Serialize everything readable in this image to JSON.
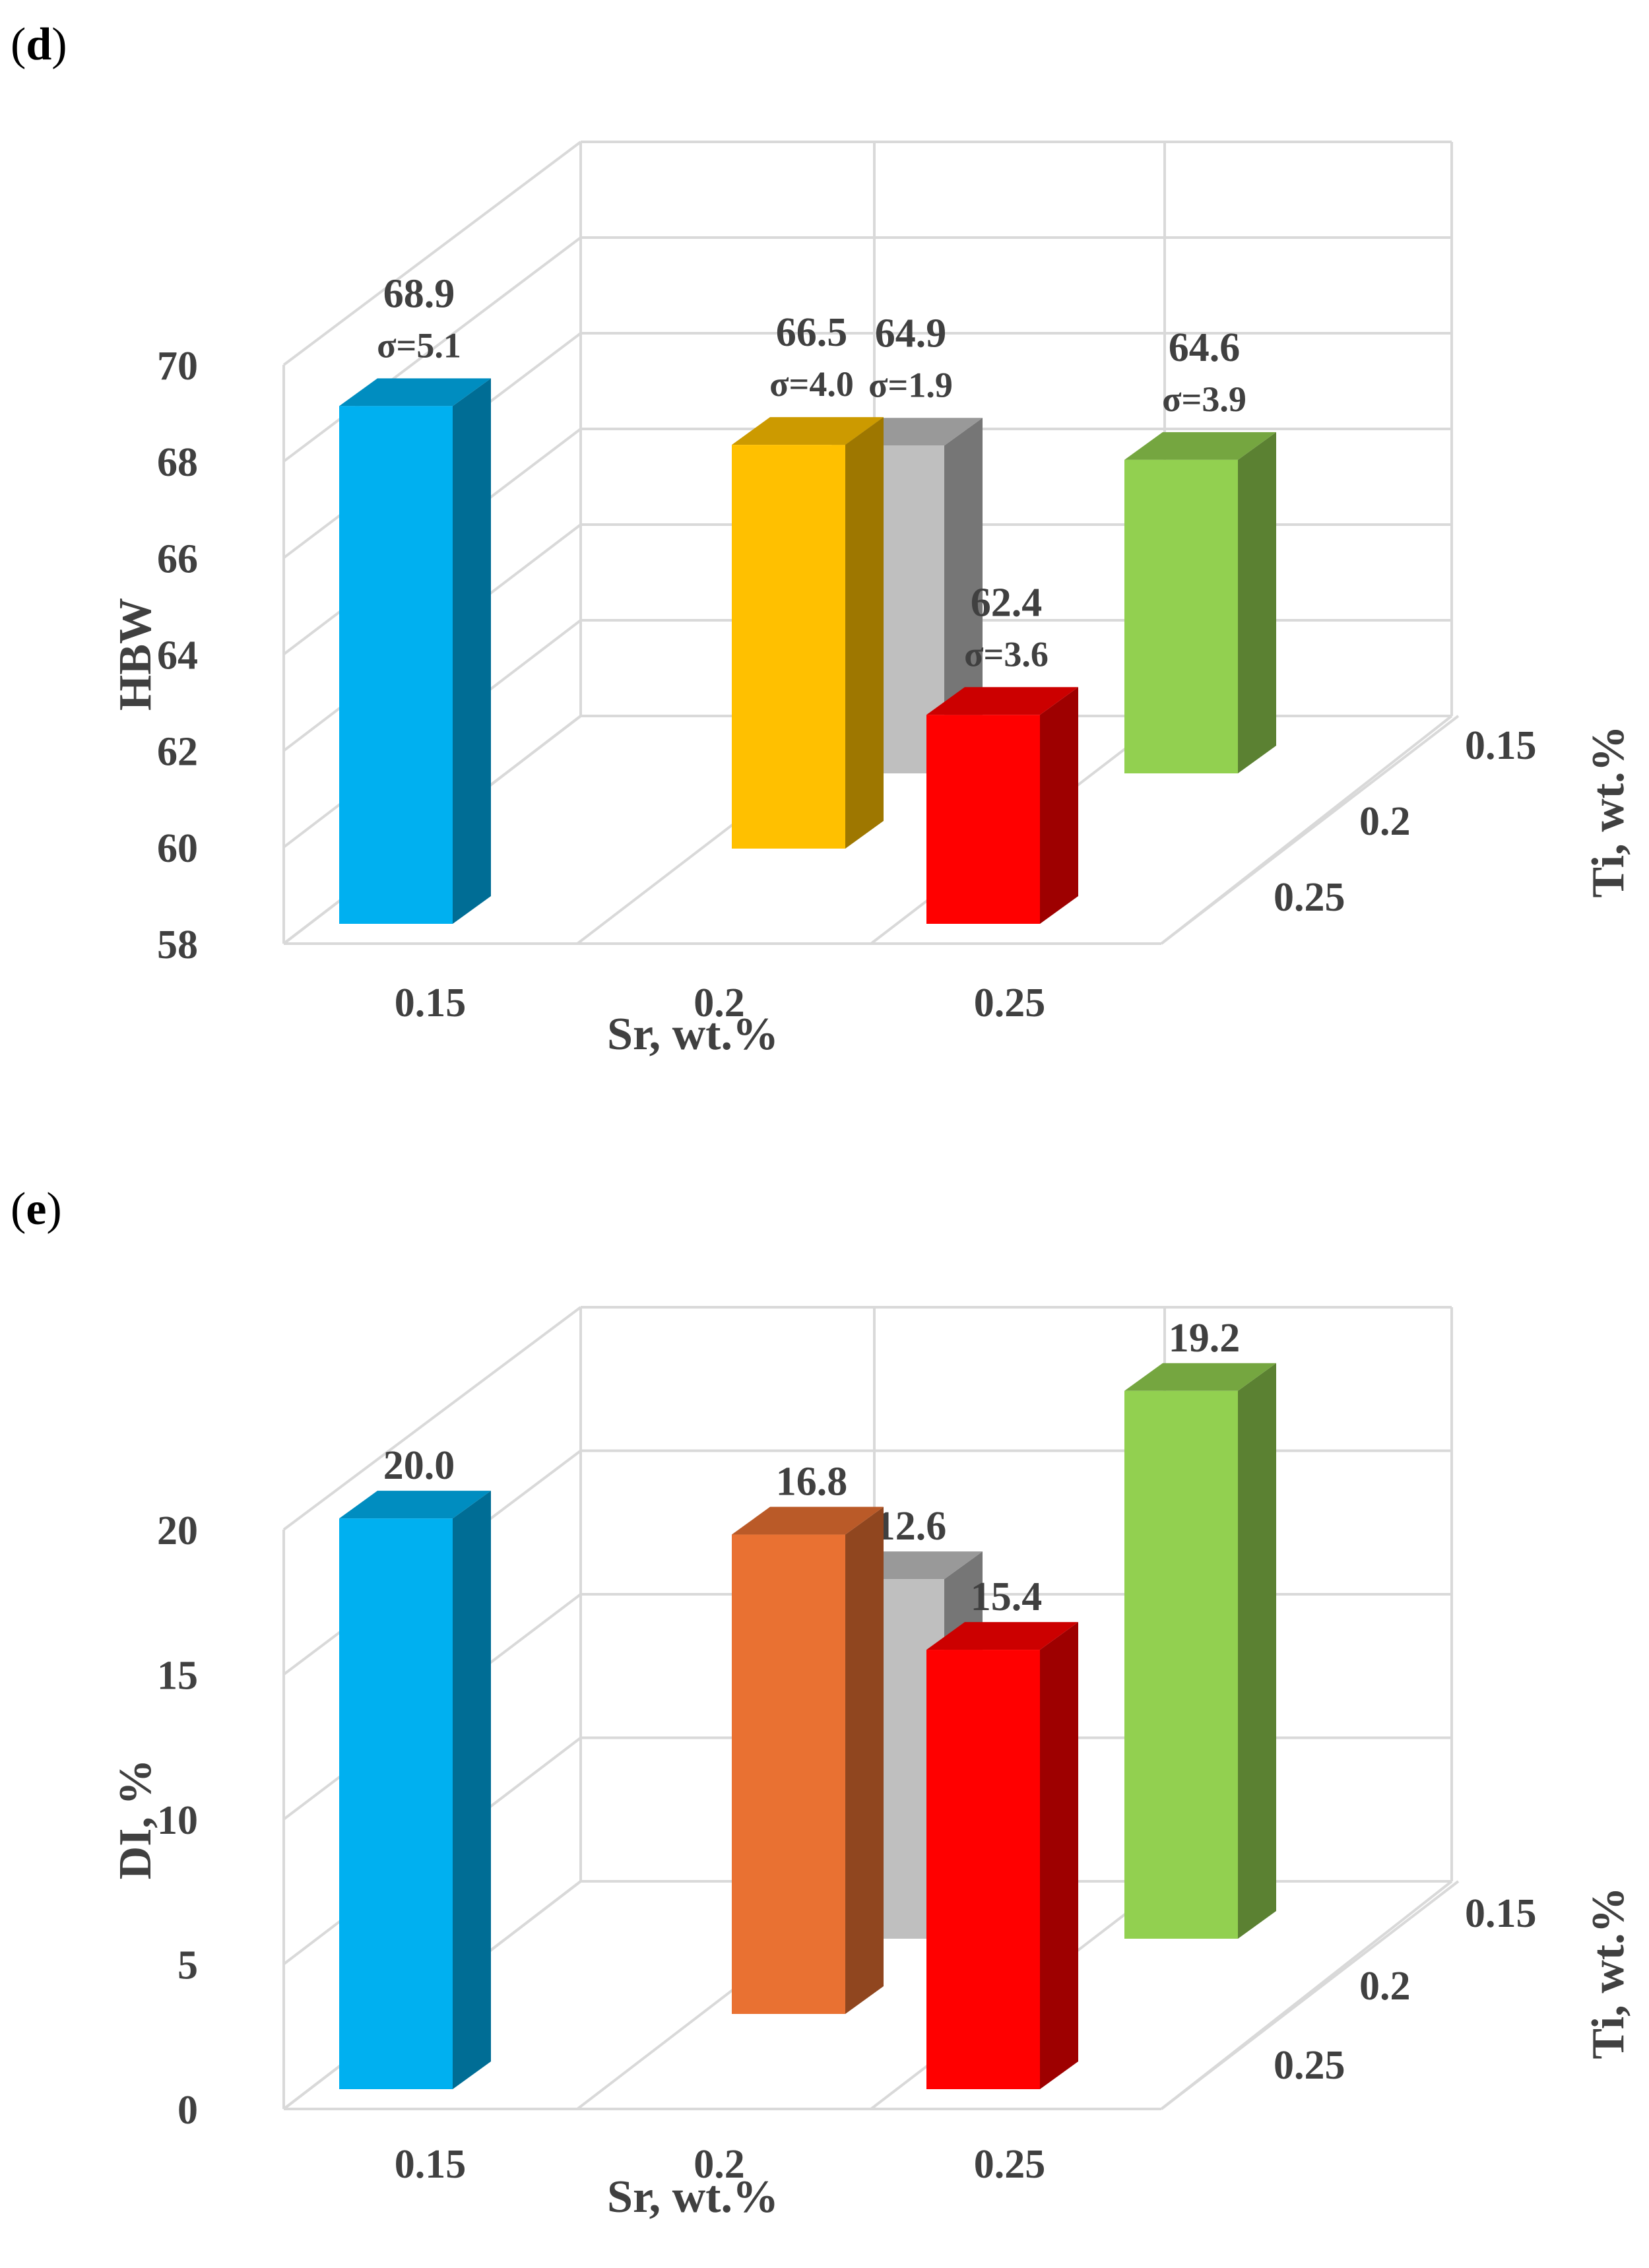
{
  "chart_data": [
    {
      "type": "bar",
      "view": "3d",
      "panel": "d",
      "xlabel": "Sr, wt.%",
      "ylabel": "HBW",
      "zlabel": "Ti, wt.%",
      "x_categories": [
        "0.15",
        "0.2",
        "0.25"
      ],
      "z_categories": [
        "0.15",
        "0.2",
        "0.25"
      ],
      "ylim": [
        58,
        70
      ],
      "yticks": [
        "58",
        "60",
        "62",
        "64",
        "66",
        "68",
        "70"
      ],
      "bars": [
        {
          "sr": "0.15",
          "ti": "0.25",
          "value": 68.9,
          "label": "68.9",
          "sigma": "σ=5.1",
          "color": "#00b0f0"
        },
        {
          "sr": "0.2",
          "ti": "0.15",
          "value": 64.9,
          "label": "64.9",
          "sigma": "σ=1.9",
          "color": "#bfbfbf"
        },
        {
          "sr": "0.2",
          "ti": "0.2",
          "value": 66.5,
          "label": "66.5",
          "sigma": "σ=4.0",
          "color": "#ffc000"
        },
        {
          "sr": "0.25",
          "ti": "0.25",
          "value": 62.4,
          "label": "62.4",
          "sigma": "σ=3.6",
          "color": "#ff0000"
        },
        {
          "sr": "0.25",
          "ti": "0.15",
          "value": 64.6,
          "label": "64.6",
          "sigma": "σ=3.9",
          "color": "#92d050"
        }
      ]
    },
    {
      "type": "bar",
      "view": "3d",
      "panel": "e",
      "xlabel": "Sr, wt.%",
      "ylabel": "DI, %",
      "zlabel": "Ti, wt.%",
      "x_categories": [
        "0.15",
        "0.2",
        "0.25"
      ],
      "z_categories": [
        "0.15",
        "0.2",
        "0.25"
      ],
      "ylim": [
        0,
        20
      ],
      "yticks": [
        "0",
        "5",
        "10",
        "15",
        "20"
      ],
      "bars": [
        {
          "sr": "0.15",
          "ti": "0.25",
          "value": 20.0,
          "label": "20.0",
          "color": "#00b0f0"
        },
        {
          "sr": "0.2",
          "ti": "0.15",
          "value": 12.6,
          "label": "12.6",
          "color": "#bfbfbf"
        },
        {
          "sr": "0.2",
          "ti": "0.2",
          "value": 16.8,
          "label": "16.8",
          "color": "#e97132"
        },
        {
          "sr": "0.25",
          "ti": "0.25",
          "value": 15.4,
          "label": "15.4",
          "color": "#ff0000"
        },
        {
          "sr": "0.25",
          "ti": "0.15",
          "value": 19.2,
          "label": "19.2",
          "color": "#92d050"
        }
      ]
    }
  ]
}
